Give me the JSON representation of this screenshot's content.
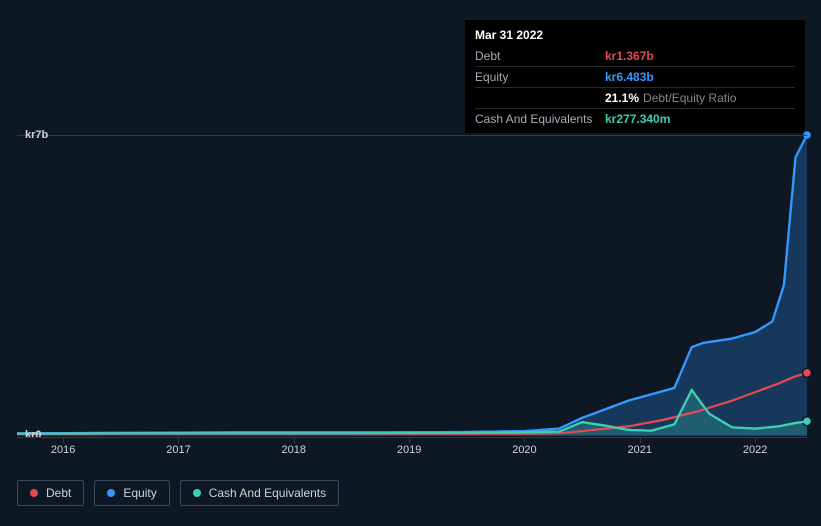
{
  "tooltip": {
    "date": "Mar 31 2022",
    "rows": {
      "debt_label": "Debt",
      "debt_value": "kr1.367b",
      "equity_label": "Equity",
      "equity_value": "kr6.483b",
      "ratio_value": "21.1%",
      "ratio_label": "Debt/Equity Ratio",
      "cash_label": "Cash And Equivalents",
      "cash_value": "kr277.340m"
    }
  },
  "chart": {
    "type": "line-area",
    "background": "#0d1824",
    "plot_background_top": "#151e2b",
    "grid_color": "#2a3b4d",
    "text_color": "#cfd3d8",
    "y": {
      "ticks": [
        {
          "value": 0,
          "label": "kr0"
        },
        {
          "value": 7,
          "label": "kr7b"
        }
      ],
      "min": 0,
      "max": 7
    },
    "x": {
      "min": 2015.6,
      "max": 2022.45,
      "ticks": [
        2016,
        2017,
        2018,
        2019,
        2020,
        2021,
        2022
      ]
    },
    "series": {
      "debt": {
        "label": "Debt",
        "color": "#e74856",
        "points": [
          [
            2015.6,
            0.02
          ],
          [
            2016.5,
            0.03
          ],
          [
            2017.5,
            0.03
          ],
          [
            2018.5,
            0.03
          ],
          [
            2019.5,
            0.03
          ],
          [
            2020.0,
            0.03
          ],
          [
            2020.3,
            0.04
          ],
          [
            2020.6,
            0.12
          ],
          [
            2020.9,
            0.2
          ],
          [
            2021.2,
            0.35
          ],
          [
            2021.5,
            0.55
          ],
          [
            2021.8,
            0.8
          ],
          [
            2022.0,
            1.0
          ],
          [
            2022.2,
            1.2
          ],
          [
            2022.35,
            1.37
          ],
          [
            2022.45,
            1.45
          ]
        ]
      },
      "equity": {
        "label": "Equity",
        "color": "#3498ff",
        "points": [
          [
            2015.6,
            0.04
          ],
          [
            2016.5,
            0.05
          ],
          [
            2017.5,
            0.06
          ],
          [
            2018.5,
            0.06
          ],
          [
            2019.5,
            0.07
          ],
          [
            2020.0,
            0.09
          ],
          [
            2020.3,
            0.15
          ],
          [
            2020.5,
            0.4
          ],
          [
            2020.7,
            0.6
          ],
          [
            2020.9,
            0.8
          ],
          [
            2021.1,
            0.95
          ],
          [
            2021.3,
            1.1
          ],
          [
            2021.45,
            2.05
          ],
          [
            2021.55,
            2.15
          ],
          [
            2021.8,
            2.25
          ],
          [
            2022.0,
            2.4
          ],
          [
            2022.15,
            2.65
          ],
          [
            2022.25,
            3.5
          ],
          [
            2022.35,
            6.48
          ],
          [
            2022.45,
            7.0
          ]
        ]
      },
      "cash": {
        "label": "Cash And Equivalents",
        "color": "#3ad0b0",
        "points": [
          [
            2015.6,
            0.03
          ],
          [
            2016.5,
            0.04
          ],
          [
            2017.5,
            0.04
          ],
          [
            2018.5,
            0.04
          ],
          [
            2019.5,
            0.05
          ],
          [
            2020.0,
            0.06
          ],
          [
            2020.3,
            0.08
          ],
          [
            2020.5,
            0.3
          ],
          [
            2020.7,
            0.22
          ],
          [
            2020.9,
            0.12
          ],
          [
            2021.1,
            0.1
          ],
          [
            2021.3,
            0.25
          ],
          [
            2021.45,
            1.05
          ],
          [
            2021.6,
            0.5
          ],
          [
            2021.8,
            0.18
          ],
          [
            2022.0,
            0.15
          ],
          [
            2022.2,
            0.2
          ],
          [
            2022.35,
            0.28
          ],
          [
            2022.45,
            0.32
          ]
        ]
      }
    },
    "end_markers": true
  },
  "legend": {
    "debt": "Debt",
    "equity": "Equity",
    "cash": "Cash And Equivalents"
  }
}
